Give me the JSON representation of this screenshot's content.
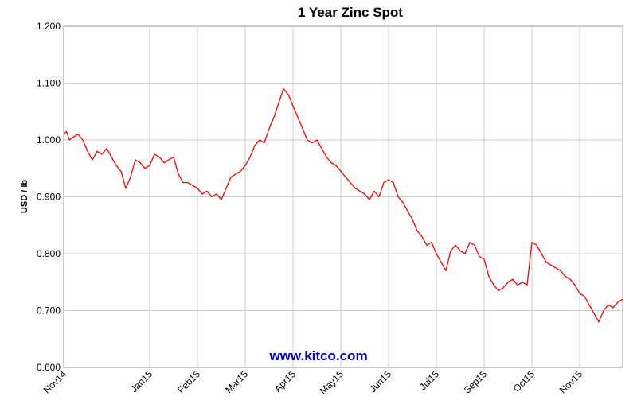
{
  "chart_data": {
    "type": "line",
    "title": "1 Year Zinc Spot",
    "ylabel": "USD / lb",
    "xlabel": "",
    "ylim": [
      0.6,
      1.2
    ],
    "y_ticks": [
      "0.600",
      "0.700",
      "0.800",
      "0.900",
      "1.000",
      "1.100",
      "1.200"
    ],
    "x_tick_labels": [
      "Nov14",
      "Jan15",
      "Feb15",
      "Mar15",
      "Apr15",
      "May15",
      "Jun15",
      "Jul15",
      "Sep15",
      "Oct15",
      "Nov15"
    ],
    "x_tick_positions": [
      0,
      1.8,
      2.8,
      3.8,
      4.8,
      5.8,
      6.8,
      7.8,
      8.8,
      9.8,
      10.8
    ],
    "x_range": [
      0,
      11.7
    ],
    "grid": true,
    "series": [
      {
        "color": "#ff0000",
        "x": [
          0,
          0.06,
          0.12,
          0.2,
          0.3,
          0.4,
          0.5,
          0.6,
          0.7,
          0.8,
          0.9,
          1.0,
          1.1,
          1.2,
          1.3,
          1.4,
          1.5,
          1.6,
          1.7,
          1.8,
          1.9,
          2.0,
          2.1,
          2.2,
          2.3,
          2.4,
          2.5,
          2.6,
          2.7,
          2.8,
          2.9,
          3.0,
          3.1,
          3.2,
          3.3,
          3.4,
          3.5,
          3.6,
          3.7,
          3.8,
          3.9,
          4.0,
          4.1,
          4.2,
          4.3,
          4.4,
          4.5,
          4.6,
          4.7,
          4.8,
          4.9,
          5.0,
          5.1,
          5.2,
          5.3,
          5.4,
          5.5,
          5.6,
          5.7,
          5.8,
          5.9,
          6.0,
          6.1,
          6.2,
          6.3,
          6.4,
          6.5,
          6.6,
          6.7,
          6.8,
          6.9,
          7.0,
          7.1,
          7.2,
          7.3,
          7.4,
          7.5,
          7.6,
          7.7,
          7.8,
          7.9,
          8.0,
          8.1,
          8.2,
          8.3,
          8.4,
          8.5,
          8.6,
          8.7,
          8.8,
          8.9,
          9.0,
          9.1,
          9.2,
          9.3,
          9.4,
          9.5,
          9.6,
          9.7,
          9.8,
          9.9,
          10.0,
          10.1,
          10.2,
          10.3,
          10.4,
          10.5,
          10.6,
          10.7,
          10.8,
          10.9,
          11.0,
          11.1,
          11.2,
          11.3,
          11.4,
          11.5,
          11.6,
          11.7
        ],
        "y": [
          1.01,
          1.015,
          1.0,
          1.005,
          1.01,
          1.0,
          0.98,
          0.965,
          0.98,
          0.975,
          0.985,
          0.97,
          0.955,
          0.945,
          0.915,
          0.935,
          0.965,
          0.96,
          0.95,
          0.955,
          0.975,
          0.97,
          0.96,
          0.965,
          0.97,
          0.94,
          0.925,
          0.925,
          0.92,
          0.915,
          0.905,
          0.91,
          0.9,
          0.905,
          0.895,
          0.915,
          0.935,
          0.94,
          0.945,
          0.955,
          0.97,
          0.99,
          1.0,
          0.995,
          1.02,
          1.04,
          1.065,
          1.09,
          1.08,
          1.06,
          1.04,
          1.02,
          1.0,
          0.995,
          1.0,
          0.985,
          0.97,
          0.96,
          0.955,
          0.945,
          0.935,
          0.925,
          0.915,
          0.91,
          0.905,
          0.895,
          0.91,
          0.9,
          0.925,
          0.93,
          0.925,
          0.9,
          0.89,
          0.875,
          0.86,
          0.84,
          0.83,
          0.815,
          0.82,
          0.8,
          0.785,
          0.77,
          0.805,
          0.815,
          0.805,
          0.8,
          0.82,
          0.815,
          0.795,
          0.79,
          0.76,
          0.745,
          0.735,
          0.74,
          0.75,
          0.755,
          0.745,
          0.75,
          0.745,
          0.82,
          0.815,
          0.8,
          0.785,
          0.78,
          0.775,
          0.77,
          0.76,
          0.755,
          0.745,
          0.73,
          0.725,
          0.71,
          0.695,
          0.68,
          0.7,
          0.71,
          0.705,
          0.715,
          0.72
        ]
      }
    ]
  },
  "watermark": "www.kitco.com"
}
